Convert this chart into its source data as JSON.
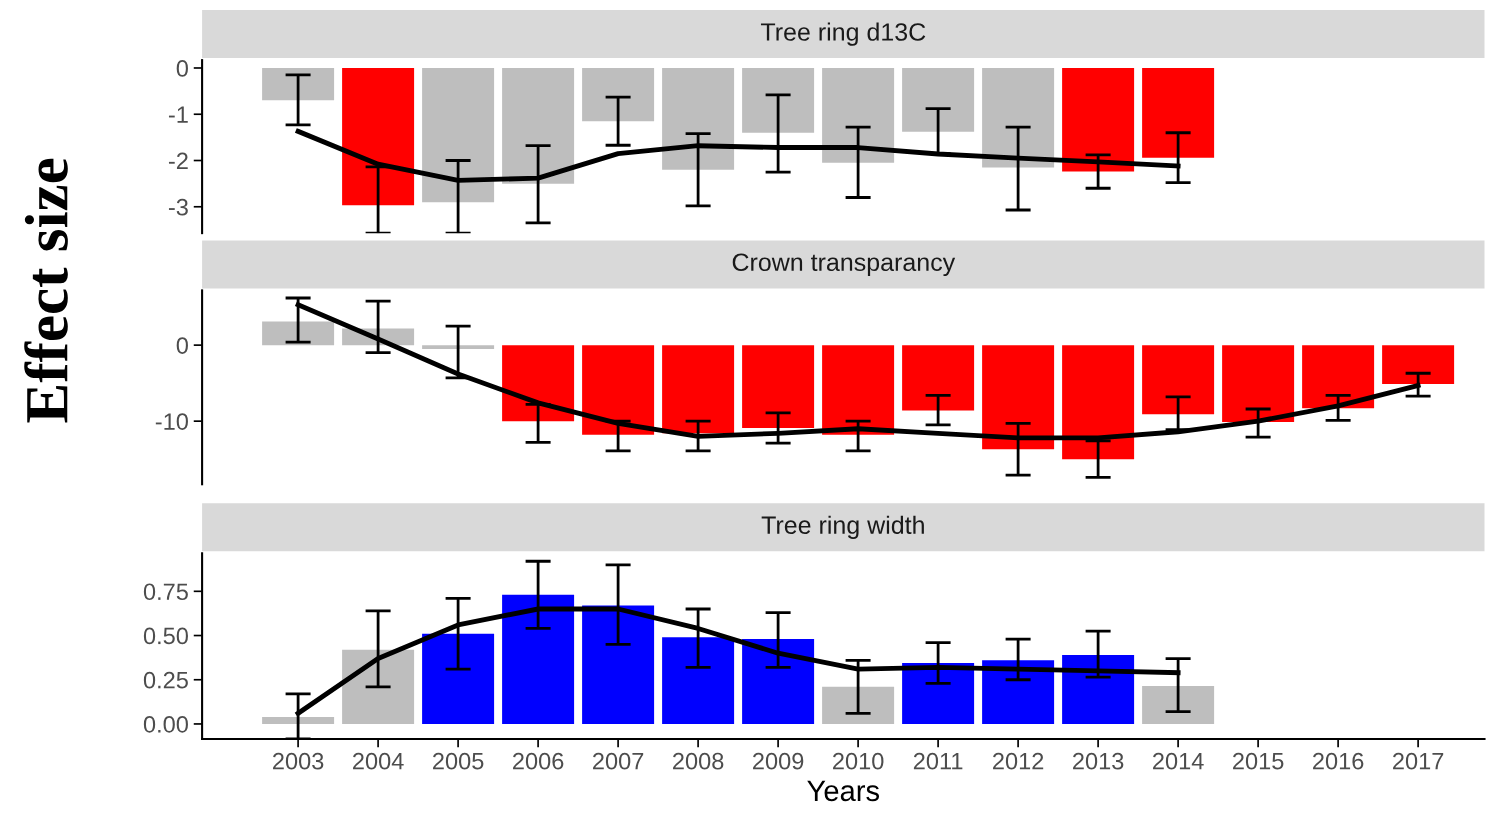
{
  "chart_data": [
    {
      "type": "bar",
      "title": "Tree ring d13C",
      "categories": [
        "2003",
        "2004",
        "2005",
        "2006",
        "2007",
        "2008",
        "2009",
        "2010",
        "2011",
        "2012",
        "2013",
        "2014",
        "2015",
        "2016",
        "2017"
      ],
      "ylim": [
        -3.57,
        0.17
      ],
      "yticks": [
        0,
        -1,
        -2,
        -3
      ],
      "tick_labels": "y",
      "grid": false,
      "legend": false,
      "series": [
        {
          "type": "bar",
          "colors": [
            "#bebebe",
            "#ff0000",
            "#bebebe",
            "#bebebe",
            "#bebebe",
            "#bebebe",
            "#bebebe",
            "#bebebe",
            "#bebebe",
            "#bebebe",
            "#ff0000",
            "#ff0000",
            null,
            null,
            null
          ],
          "values": [
            -0.7,
            -2.97,
            -2.9,
            -2.5,
            -1.15,
            -2.2,
            -1.4,
            -2.05,
            -1.38,
            -2.15,
            -2.24,
            -1.94,
            null,
            null,
            null
          ],
          "errors": [
            [
              -1.23,
              -0.15
            ],
            [
              -3.57,
              -2.14
            ],
            [
              -3.57,
              -2.0
            ],
            [
              -3.35,
              -1.68
            ],
            [
              -1.67,
              -0.63
            ],
            [
              -2.98,
              -1.42
            ],
            [
              -2.25,
              -0.58
            ],
            [
              -2.8,
              -1.28
            ],
            [
              -1.85,
              -0.88
            ],
            [
              -3.07,
              -1.28
            ],
            [
              -2.6,
              -1.88
            ],
            [
              -2.48,
              -1.4
            ],
            null,
            null,
            null
          ]
        },
        {
          "type": "line",
          "color": "#000000",
          "values": [
            -1.37,
            -2.08,
            -2.43,
            -2.38,
            -1.85,
            -1.68,
            -1.72,
            -1.72,
            -1.86,
            -1.95,
            -2.03,
            -2.12,
            null,
            null,
            null
          ]
        }
      ]
    },
    {
      "type": "bar",
      "title": "Crown transparancy",
      "ylabel": "Effect size",
      "categories": [
        "2003",
        "2004",
        "2005",
        "2006",
        "2007",
        "2008",
        "2009",
        "2010",
        "2011",
        "2012",
        "2013",
        "2014",
        "2015",
        "2016",
        "2017"
      ],
      "ylim": [
        -18.3,
        7.2
      ],
      "yticks": [
        0,
        -10
      ],
      "tick_labels": "y",
      "grid": false,
      "legend": false,
      "series": [
        {
          "type": "bar",
          "colors": [
            "#bebebe",
            "#bebebe",
            "#bebebe",
            "#ff0000",
            "#ff0000",
            "#ff0000",
            "#ff0000",
            "#ff0000",
            "#ff0000",
            "#ff0000",
            "#ff0000",
            "#ff0000",
            "#ff0000",
            "#ff0000",
            "#ff0000"
          ],
          "values": [
            3.1,
            2.2,
            -0.5,
            -10.0,
            -11.8,
            -11.6,
            -10.9,
            -11.8,
            -8.6,
            -13.7,
            -15.0,
            -9.1,
            -10.1,
            -8.3,
            -5.1
          ],
          "errors": [
            [
              0.4,
              6.2
            ],
            [
              -1.0,
              5.8
            ],
            [
              -4.3,
              2.5
            ],
            [
              -12.8,
              -7.8
            ],
            [
              -13.9,
              -10.0
            ],
            [
              -13.9,
              -10.0
            ],
            [
              -12.9,
              -8.9
            ],
            [
              -13.9,
              -10.0
            ],
            [
              -10.5,
              -6.6
            ],
            [
              -17.1,
              -10.3
            ],
            [
              -17.4,
              -12.6
            ],
            [
              -11.1,
              -6.8
            ],
            [
              -12.1,
              -8.4
            ],
            [
              -9.9,
              -6.6
            ],
            [
              -6.7,
              -3.7
            ]
          ]
        },
        {
          "type": "line",
          "color": "#000000",
          "values": [
            5.3,
            0.8,
            -3.8,
            -7.6,
            -10.3,
            -12.0,
            -11.6,
            -11.0,
            -11.6,
            -12.2,
            -12.2,
            -11.4,
            -10.0,
            -8.0,
            -5.3
          ]
        }
      ]
    },
    {
      "type": "bar",
      "title": "Tree ring width",
      "xlabel": "Years",
      "categories": [
        "2003",
        "2004",
        "2005",
        "2006",
        "2007",
        "2008",
        "2009",
        "2010",
        "2011",
        "2012",
        "2013",
        "2014",
        "2015",
        "2016",
        "2017"
      ],
      "ylim": [
        -0.085,
        0.965
      ],
      "yticks": [
        {
          "value": 0,
          "label": "0.00"
        },
        0.25,
        {
          "value": 0.5,
          "label": "0.50"
        },
        0.75
      ],
      "grid": false,
      "legend": false,
      "series": [
        {
          "type": "bar",
          "colors": [
            "#bebebe",
            "#bebebe",
            "#0000ff",
            "#0000ff",
            "#0000ff",
            "#0000ff",
            "#0000ff",
            "#bebebe",
            "#0000ff",
            "#0000ff",
            "#0000ff",
            "#bebebe",
            null,
            null,
            null
          ],
          "values": [
            0.04,
            0.42,
            0.51,
            0.73,
            0.67,
            0.49,
            0.48,
            0.21,
            0.345,
            0.36,
            0.39,
            0.215,
            null,
            null,
            null
          ],
          "errors": [
            [
              -0.085,
              0.17
            ],
            [
              0.21,
              0.64
            ],
            [
              0.31,
              0.71
            ],
            [
              0.54,
              0.92
            ],
            [
              0.45,
              0.9
            ],
            [
              0.32,
              0.65
            ],
            [
              0.32,
              0.63
            ],
            [
              0.06,
              0.36
            ],
            [
              0.23,
              0.46
            ],
            [
              0.25,
              0.48
            ],
            [
              0.265,
              0.525
            ],
            [
              0.07,
              0.37
            ],
            null,
            null,
            null
          ]
        },
        {
          "type": "line",
          "color": "#000000",
          "values": [
            0.06,
            0.37,
            0.56,
            0.65,
            0.65,
            0.54,
            0.4,
            0.31,
            0.32,
            0.31,
            0.3,
            0.29,
            null,
            null,
            null
          ]
        }
      ]
    }
  ]
}
